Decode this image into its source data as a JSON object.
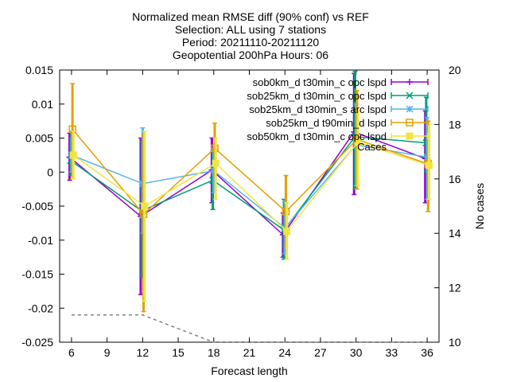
{
  "chart_data": {
    "type": "line",
    "title_lines": [
      "Normalized mean RMSE diff (90% conf) vs REF",
      "Selection: ALL using     7 stations",
      "Period: 20211110-20211120",
      "Geopotential 200hPa   Hours: 06"
    ],
    "xlabel": "Forecast length",
    "ylabel": "",
    "y2label": "No cases",
    "x": [
      6,
      12,
      18,
      24,
      30,
      36
    ],
    "xlim": [
      5,
      37
    ],
    "xticks": [
      "6",
      "9",
      "12",
      "15",
      "18",
      "21",
      "24",
      "27",
      "30",
      "33",
      "36"
    ],
    "ylim": [
      -0.025,
      0.015
    ],
    "yticks": [
      "-0.025",
      "-0.02",
      "-0.015",
      "-0.01",
      "-0.005",
      "0",
      "0.005",
      "0.01",
      "0.015"
    ],
    "y2lim": [
      10,
      20
    ],
    "y2ticks": [
      "10",
      "12",
      "14",
      "16",
      "18",
      "20"
    ],
    "grid": false,
    "legend_position": "top-right",
    "series": [
      {
        "name": "sob0km_d t30min_c opc lspd",
        "color": "#9400d3",
        "marker": "plus",
        "values": [
          0.0022,
          -0.0065,
          0.0003,
          -0.0092,
          0.0059,
          0.002
        ],
        "err_low": [
          -0.0012,
          -0.018,
          -0.0045,
          -0.0125,
          -0.0033,
          -0.0045
        ],
        "err_high": [
          0.0057,
          0.005,
          0.005,
          -0.006,
          0.0145,
          0.009
        ]
      },
      {
        "name": "sob25km_d t30min_c opc lspd",
        "color": "#009e73",
        "marker": "x",
        "values": [
          0.0017,
          -0.0057,
          -0.0012,
          -0.0085,
          0.0052,
          0.0043
        ],
        "err_low": [
          -0.0005,
          -0.0155,
          -0.0055,
          -0.0128,
          -0.0025,
          0.0
        ],
        "err_high": [
          0.005,
          0.0045,
          0.003,
          -0.004,
          0.0148,
          0.011
        ]
      },
      {
        "name": "sob25km_d t30min_s arc lspd",
        "color": "#56b4e9",
        "marker": "star",
        "values": [
          0.0025,
          -0.0017,
          0.0002,
          -0.0082,
          0.004,
          0.0022
        ],
        "err_low": [
          0.0,
          -0.009,
          -0.003,
          -0.012,
          -0.002,
          -0.004
        ],
        "err_high": [
          0.006,
          0.0065,
          0.0035,
          -0.0042,
          0.01,
          0.008
        ]
      },
      {
        "name": "sob25km_d t90min_d lspd",
        "color": "#e69f00",
        "marker": "square",
        "values": [
          0.0063,
          -0.0062,
          0.0035,
          -0.0058,
          0.0048,
          0.0012
        ],
        "err_low": [
          -0.001,
          -0.0205,
          -0.0005,
          -0.011,
          -0.0025,
          -0.0058
        ],
        "err_high": [
          0.013,
          0.0055,
          0.0072,
          -0.0005,
          0.012,
          0.0075
        ]
      },
      {
        "name": "sob50km_d t30min_c opc lspd",
        "color": "#f0e442",
        "marker": "filled-square",
        "values": [
          0.0025,
          -0.005,
          0.0013,
          -0.0087,
          0.0044,
          0.001
        ],
        "err_low": [
          -0.001,
          -0.019,
          -0.004,
          -0.0128,
          -0.002,
          -0.004
        ],
        "err_high": [
          0.006,
          0.006,
          0.005,
          -0.0045,
          0.009,
          0.007
        ]
      }
    ],
    "cases": {
      "name": "Cases",
      "color": "#808080",
      "axis": "y2",
      "values": [
        11,
        11,
        10,
        10,
        10,
        10
      ]
    }
  }
}
